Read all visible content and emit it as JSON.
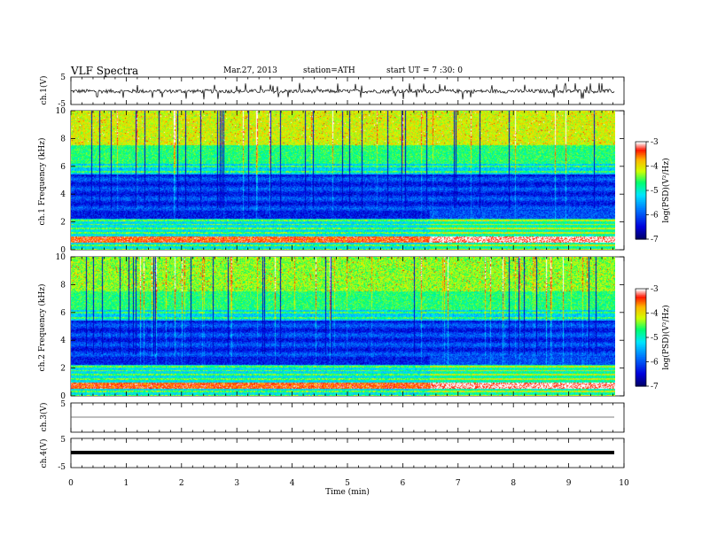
{
  "header": {
    "title": "VLF Spectra",
    "date": "Mar.27, 2013",
    "station": "station=ATH",
    "start": "start UT =  7 :30: 0"
  },
  "colorbar": {
    "label": "log(PSD)(V²/Hz)",
    "ticks": [
      "-3",
      "-4",
      "-5",
      "-6",
      "-7"
    ],
    "colors": [
      "#000080",
      "#0000ff",
      "#00c8ff",
      "#00ff80",
      "#ffff00",
      "#ff8000",
      "#ff0000",
      "#ffffff"
    ]
  },
  "chart_data": [
    {
      "type": "line",
      "panel": "ch1-waveform",
      "ylabel": "ch.1(V)",
      "ylim": [
        -5,
        5
      ],
      "yticks": [
        "5",
        "-5"
      ],
      "xlim": [
        0,
        10
      ],
      "description_values": {
        "baseline": 0,
        "noise_amplitude": 1,
        "spike_amplitude": 3
      }
    },
    {
      "type": "heatmap",
      "panel": "ch1-spectrogram",
      "ylabel": "ch.1 Frequency (kHz)",
      "ylim": [
        0,
        10
      ],
      "yticks": [
        "10",
        "8",
        "6",
        "4",
        "2",
        "0"
      ],
      "xlim": [
        0,
        9.8
      ],
      "zlim": [
        -7,
        -3
      ],
      "regime_change_min": 6.45
    },
    {
      "type": "heatmap",
      "panel": "ch2-spectrogram",
      "ylabel": "ch.2 Frequency (kHz)",
      "ylim": [
        0,
        10
      ],
      "yticks": [
        "10",
        "8",
        "6",
        "4",
        "2",
        "0"
      ],
      "xlim": [
        0,
        9.8
      ],
      "zlim": [
        -7,
        -3
      ],
      "regime_change_min": 6.45
    },
    {
      "type": "line",
      "panel": "ch3-waveform",
      "ylabel": "ch.3(V)",
      "ylim": [
        -5,
        5
      ],
      "yticks": [
        "5"
      ],
      "xlim": [
        0,
        10
      ]
    },
    {
      "type": "line",
      "panel": "ch4-waveform",
      "ylabel": "ch.4(V)",
      "ylim": [
        -5,
        5
      ],
      "yticks": [
        "5",
        "-5"
      ],
      "xlim": [
        0,
        10
      ]
    }
  ],
  "xaxis": {
    "label": "Time (min)",
    "ticks": [
      "0",
      "1",
      "2",
      "3",
      "4",
      "5",
      "6",
      "7",
      "8",
      "9",
      "10"
    ]
  }
}
